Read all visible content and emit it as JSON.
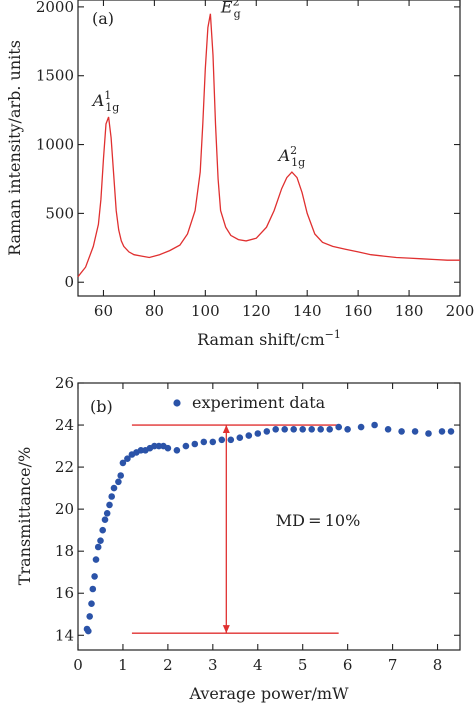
{
  "chart_data": [
    {
      "type": "line",
      "panel_label": "(a)",
      "title": "",
      "xlabel": "Raman shift/cm",
      "xlabel_sup": "−1",
      "ylabel": "Raman intensity/arb. units",
      "xlim": [
        50,
        200
      ],
      "ylim": [
        -100,
        2050
      ],
      "xticks": [
        60,
        80,
        100,
        120,
        140,
        160,
        180,
        200
      ],
      "yticks": [
        0,
        500,
        1000,
        1500,
        2000
      ],
      "grid": false,
      "line_color": "#e03030",
      "series": [
        {
          "x": [
            50,
            53,
            56,
            58,
            59,
            60,
            61,
            62,
            63,
            64,
            65,
            66,
            67,
            68,
            70,
            72,
            75,
            78,
            82,
            86,
            90,
            93,
            96,
            98,
            99,
            100,
            101,
            102,
            103,
            104,
            105,
            106,
            108,
            110,
            113,
            116,
            120,
            124,
            127,
            130,
            132,
            134,
            136,
            138,
            140,
            143,
            146,
            150,
            155,
            160,
            165,
            170,
            175,
            180,
            185,
            190,
            195,
            200
          ],
          "y": [
            40,
            110,
            260,
            420,
            600,
            900,
            1150,
            1200,
            1050,
            780,
            520,
            380,
            300,
            260,
            220,
            200,
            190,
            180,
            200,
            230,
            270,
            350,
            520,
            800,
            1150,
            1550,
            1850,
            1950,
            1650,
            1150,
            750,
            520,
            400,
            340,
            310,
            300,
            320,
            400,
            520,
            680,
            760,
            800,
            760,
            650,
            500,
            350,
            290,
            260,
            240,
            220,
            200,
            190,
            180,
            175,
            170,
            165,
            160,
            160
          ]
        }
      ],
      "annotations": [
        {
          "base": "A",
          "sup": "1",
          "sub": "1g",
          "x": 61,
          "y": 1280
        },
        {
          "base": "E",
          "sup": "2",
          "sub": "g",
          "x": 110,
          "y": 1960
        },
        {
          "base": "A",
          "sup": "2",
          "sub": "1g",
          "x": 134,
          "y": 880
        }
      ]
    },
    {
      "type": "scatter",
      "panel_label": "(b)",
      "title": "",
      "xlabel": "Average power/mW",
      "ylabel": "Transmittance/%",
      "xlim": [
        0,
        8.5
      ],
      "ylim": [
        13.3,
        26
      ],
      "xticks": [
        0,
        1,
        2,
        3,
        4,
        5,
        6,
        7,
        8
      ],
      "yticks": [
        14,
        16,
        18,
        20,
        22,
        24,
        26
      ],
      "grid": false,
      "legend": "top-left",
      "marker_color": "#2b53a8",
      "series": [
        {
          "name": "experiment data",
          "x": [
            0.2,
            0.23,
            0.26,
            0.3,
            0.33,
            0.37,
            0.4,
            0.45,
            0.5,
            0.55,
            0.6,
            0.65,
            0.7,
            0.75,
            0.8,
            0.9,
            0.95,
            1.0,
            1.1,
            1.2,
            1.3,
            1.4,
            1.5,
            1.6,
            1.7,
            1.8,
            1.9,
            2.0,
            2.2,
            2.4,
            2.6,
            2.8,
            3.0,
            3.2,
            3.4,
            3.6,
            3.8,
            4.0,
            4.2,
            4.4,
            4.6,
            4.8,
            5.0,
            5.2,
            5.4,
            5.6,
            5.8,
            6.0,
            6.3,
            6.6,
            6.9,
            7.2,
            7.5,
            7.8,
            8.1,
            8.3
          ],
          "y": [
            14.3,
            14.2,
            14.9,
            15.5,
            16.2,
            16.8,
            17.6,
            18.2,
            18.5,
            19.0,
            19.5,
            19.8,
            20.2,
            20.6,
            21.0,
            21.3,
            21.6,
            22.2,
            22.4,
            22.6,
            22.7,
            22.8,
            22.8,
            22.9,
            23.0,
            23.0,
            23.0,
            22.9,
            22.8,
            23.0,
            23.1,
            23.2,
            23.2,
            23.3,
            23.3,
            23.4,
            23.5,
            23.6,
            23.7,
            23.8,
            23.8,
            23.8,
            23.8,
            23.8,
            23.8,
            23.8,
            23.9,
            23.8,
            23.9,
            24.0,
            23.8,
            23.7,
            23.7,
            23.6,
            23.7,
            23.7
          ]
        }
      ],
      "annotation_text": "MD = 10%",
      "guide_color": "#e03030",
      "guides": {
        "upper": {
          "x": [
            1.2,
            5.8
          ],
          "y": 24.0
        },
        "lower": {
          "x": [
            1.2,
            5.8
          ],
          "y": 14.1
        },
        "arrow": {
          "x": 3.3,
          "y": [
            14.1,
            24.0
          ]
        },
        "annotation": {
          "x": 4.4,
          "y": 19.2
        }
      }
    }
  ]
}
